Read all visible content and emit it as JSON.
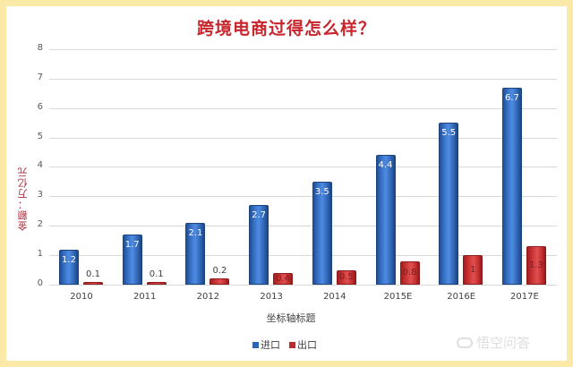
{
  "title": "跨境电商过得怎么样？",
  "watermark": "悟空问答",
  "chart_data": {
    "type": "bar",
    "title": "跨境电商过得怎么样？",
    "xlabel": "坐标轴标题",
    "ylabel": "金额：万亿元",
    "ylim": [
      0,
      8
    ],
    "yticks": [
      "0",
      "1",
      "2",
      "3",
      "4",
      "5",
      "6",
      "7",
      "8"
    ],
    "grid": true,
    "legend_position": "bottom",
    "categories": [
      "2010",
      "2011",
      "2012",
      "2013",
      "2014",
      "2015E",
      "2016E",
      "2017E"
    ],
    "series": [
      {
        "name": "进口",
        "color": "#2e64b4",
        "values": [
          1.2,
          1.7,
          2.1,
          2.7,
          3.5,
          4.4,
          5.5,
          6.7
        ],
        "labels": [
          "1.2",
          "1.7",
          "2.1",
          "2.7",
          "3.5",
          "4.4",
          "5.5",
          "6.7"
        ]
      },
      {
        "name": "出口",
        "color": "#c02a2b",
        "values": [
          0.1,
          0.1,
          0.2,
          0.4,
          0.5,
          0.8,
          1,
          1.3
        ],
        "labels": [
          "0.1",
          "0.1",
          "0.2",
          "0.4",
          "0.5",
          "0.8",
          "1",
          "1.3"
        ]
      }
    ]
  }
}
